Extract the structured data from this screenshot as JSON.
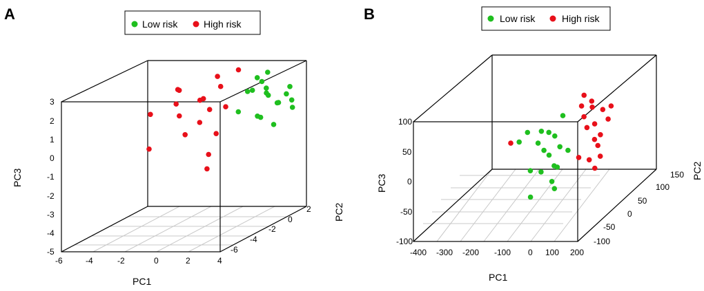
{
  "chart_data": [
    {
      "type": "scatter",
      "panel": "A",
      "title": "",
      "legend": [
        {
          "label": "Low risk",
          "color": "#1fbf1f"
        },
        {
          "label": "High risk",
          "color": "#e8101a"
        }
      ],
      "xlabel": "PC1",
      "ylabel": "PC2",
      "zlabel": "PC3",
      "xlim": [
        -6,
        4
      ],
      "ylim": [
        -7,
        2
      ],
      "zlim": [
        -5,
        3
      ],
      "x_ticks": [
        "-6",
        "-4",
        "-2",
        "0",
        "2",
        "4"
      ],
      "y_ticks": [
        "-6",
        "-4",
        "-2",
        "0",
        "2"
      ],
      "z_ticks": [
        "-5",
        "-4",
        "-3",
        "-2",
        "-1",
        "0",
        "1",
        "2",
        "3"
      ],
      "series": [
        {
          "name": "Low risk",
          "points": [
            [
              1.5,
              0.5,
              1.6
            ],
            [
              2.2,
              1.0,
              1.2
            ],
            [
              3.0,
              0.6,
              0.9
            ],
            [
              1.8,
              -0.5,
              1.8
            ],
            [
              2.6,
              1.4,
              0.7
            ],
            [
              3.4,
              0.9,
              1.3
            ],
            [
              1.2,
              1.5,
              2.0
            ],
            [
              2.0,
              0.2,
              0.3
            ],
            [
              2.8,
              -0.2,
              1.9
            ],
            [
              3.6,
              1.2,
              0.5
            ],
            [
              1.6,
              1.8,
              1.1
            ],
            [
              2.4,
              0.0,
              2.2
            ],
            [
              3.2,
              1.6,
              1.5
            ],
            [
              1.4,
              -0.8,
              0.8
            ],
            [
              2.1,
              1.1,
              2.4
            ],
            [
              2.9,
              0.4,
              -0.2
            ],
            [
              3.8,
              0.8,
              1.0
            ],
            [
              1.9,
              0.7,
              0.1
            ]
          ]
        },
        {
          "name": "High risk",
          "points": [
            [
              -0.5,
              0.5,
              1.8
            ],
            [
              -1.5,
              0.0,
              1.2
            ],
            [
              -2.5,
              -0.5,
              0.5
            ],
            [
              -1.0,
              1.0,
              2.2
            ],
            [
              0.0,
              0.2,
              0.8
            ],
            [
              -2.0,
              0.8,
              -0.2
            ],
            [
              -3.0,
              0.0,
              1.0
            ],
            [
              -0.8,
              -0.8,
              1.5
            ],
            [
              -1.8,
              1.5,
              0.3
            ],
            [
              0.2,
              1.2,
              2.5
            ],
            [
              -2.8,
              0.6,
              -0.8
            ],
            [
              -4.5,
              -0.2,
              0.5
            ],
            [
              -1.2,
              0.4,
              -1.8
            ],
            [
              -2.2,
              -1.0,
              2.0
            ],
            [
              -0.3,
              -0.3,
              -0.5
            ],
            [
              -3.5,
              1.0,
              1.5
            ],
            [
              -1.6,
              0.9,
              -2.7
            ],
            [
              -3.8,
              -1.5,
              -1.0
            ]
          ]
        }
      ]
    },
    {
      "type": "scatter",
      "panel": "B",
      "title": "",
      "legend": [
        {
          "label": "Low risk",
          "color": "#1fbf1f"
        },
        {
          "label": "High risk",
          "color": "#e8101a"
        }
      ],
      "xlabel": "PC1",
      "ylabel": "PC2",
      "zlabel": "PC3",
      "xlim": [
        -400,
        200
      ],
      "ylim": [
        -150,
        150
      ],
      "zlim": [
        -100,
        100
      ],
      "x_ticks": [
        "-400",
        "-300",
        "-200",
        "-100",
        "0",
        "100",
        "200"
      ],
      "y_ticks": [
        "-100",
        "-50",
        "0",
        "50",
        "100",
        "150"
      ],
      "z_ticks": [
        "-100",
        "-50",
        "0",
        "50",
        "100"
      ],
      "series": [
        {
          "name": "Low risk",
          "points": [
            [
              -20,
              -60,
              -20
            ],
            [
              -10,
              -40,
              0
            ],
            [
              0,
              -70,
              20
            ],
            [
              10,
              -50,
              -40
            ],
            [
              20,
              -30,
              10
            ],
            [
              -30,
              -20,
              30
            ],
            [
              -40,
              -80,
              -10
            ],
            [
              30,
              -60,
              40
            ],
            [
              0,
              -30,
              -60
            ],
            [
              -50,
              -40,
              20
            ],
            [
              40,
              -20,
              0
            ],
            [
              -20,
              -10,
              -30
            ],
            [
              10,
              -90,
              60
            ],
            [
              -60,
              -70,
              50
            ],
            [
              20,
              -40,
              -20
            ],
            [
              -100,
              -60,
              30
            ],
            [
              50,
              -50,
              70
            ],
            [
              -30,
              -90,
              -50
            ]
          ]
        },
        {
          "name": "High risk",
          "points": [
            [
              60,
              20,
              40
            ],
            [
              80,
              40,
              20
            ],
            [
              100,
              10,
              60
            ],
            [
              70,
              50,
              -10
            ],
            [
              90,
              0,
              30
            ],
            [
              110,
              30,
              -30
            ],
            [
              50,
              60,
              50
            ],
            [
              120,
              20,
              10
            ],
            [
              80,
              -10,
              70
            ],
            [
              60,
              40,
              -40
            ],
            [
              100,
              50,
              40
            ],
            [
              130,
              0,
              0
            ],
            [
              70,
              10,
              80
            ],
            [
              90,
              30,
              -50
            ],
            [
              110,
              60,
              20
            ],
            [
              -150,
              -40,
              20
            ],
            [
              60,
              0,
              -20
            ],
            [
              140,
              40,
              50
            ]
          ]
        }
      ]
    }
  ]
}
